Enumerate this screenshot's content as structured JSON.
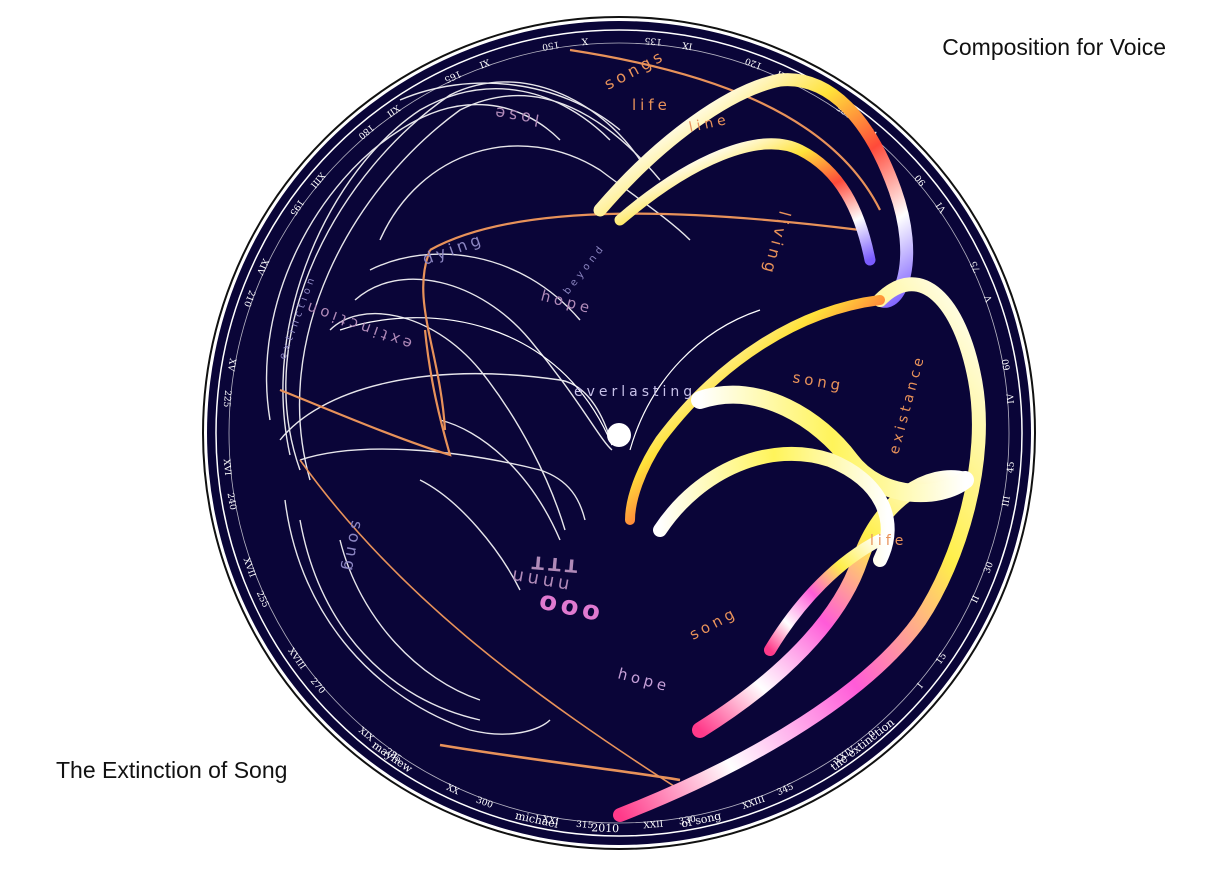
{
  "titles": {
    "top_right": "Composition for Voice",
    "bottom_left": "The Extinction of Song"
  },
  "disc": {
    "background_color": "#0a0538",
    "rim_color": "#ffffff",
    "orange_color": "#e8925a",
    "ring_text": [
      "the extinction",
      "of song",
      "michael",
      "mayhew",
      "2010"
    ],
    "ring_numbers": [
      "300",
      "285",
      "270",
      "255",
      "240",
      "225",
      "210",
      "195",
      "180",
      "165",
      "150",
      "135",
      "120",
      "105",
      "90",
      "75",
      "60",
      "45",
      "30",
      "15",
      "0",
      "345",
      "330",
      "315"
    ],
    "ring_numerals": [
      "XX",
      "XIX",
      "XVIII",
      "XVII",
      "XVI",
      "XV",
      "XIV",
      "XIII",
      "XII",
      "XI",
      "X",
      "IX",
      "VIII",
      "VII",
      "VI",
      "V",
      "IV",
      "III",
      "II",
      "I",
      "XXIV",
      "XXIII",
      "XXII",
      "XXI"
    ],
    "words": {
      "songs": "songs",
      "life_top": "life",
      "line": "line",
      "lose": "lose",
      "dying": "dying",
      "living": "living",
      "beyond": "beyond",
      "hope_upper": "hope",
      "extinction_small": "extinction",
      "extinction_big": "extinction",
      "everlasting": "everlasting",
      "song_right": "song",
      "existance": "existance",
      "life_right": "life",
      "song_left": "song",
      "ttt": "TTT",
      "nnnn": "nnnn",
      "ooo": "ooo",
      "song_lower": "song",
      "hope_lower": "hope"
    }
  }
}
